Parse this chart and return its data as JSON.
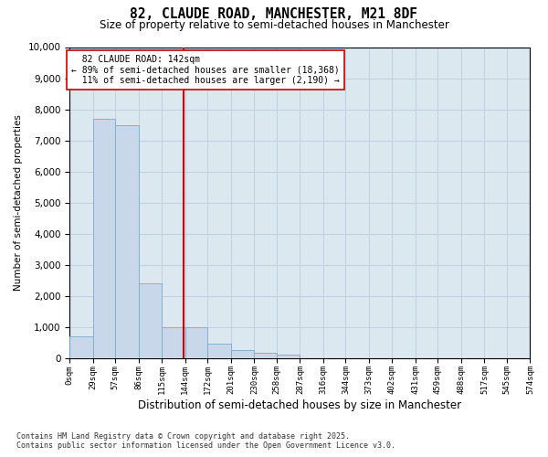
{
  "title_line1": "82, CLAUDE ROAD, MANCHESTER, M21 8DF",
  "title_line2": "Size of property relative to semi-detached houses in Manchester",
  "xlabel": "Distribution of semi-detached houses by size in Manchester",
  "ylabel": "Number of semi-detached properties",
  "footnote": "Contains HM Land Registry data © Crown copyright and database right 2025.\nContains public sector information licensed under the Open Government Licence v3.0.",
  "property_size": 142,
  "property_label": "82 CLAUDE ROAD: 142sqm",
  "pct_smaller": 89,
  "count_smaller": 18368,
  "pct_larger": 11,
  "count_larger": 2190,
  "bar_color": "#c8d8ea",
  "bar_edge_color": "#7aaac8",
  "vline_color": "#cc0000",
  "grid_color": "#c0d0e0",
  "background_color": "#dce8f0",
  "bin_edges": [
    0,
    29,
    57,
    86,
    115,
    144,
    172,
    201,
    230,
    258,
    287,
    316,
    344,
    373,
    402,
    431,
    459,
    488,
    517,
    545,
    574
  ],
  "bin_labels": [
    "0sqm",
    "29sqm",
    "57sqm",
    "86sqm",
    "115sqm",
    "144sqm",
    "172sqm",
    "201sqm",
    "230sqm",
    "258sqm",
    "287sqm",
    "316sqm",
    "344sqm",
    "373sqm",
    "402sqm",
    "431sqm",
    "459sqm",
    "488sqm",
    "517sqm",
    "545sqm",
    "574sqm"
  ],
  "bar_heights": [
    700,
    7700,
    7500,
    2400,
    1000,
    1000,
    450,
    250,
    150,
    100,
    0,
    0,
    0,
    0,
    0,
    0,
    0,
    0,
    0,
    0
  ],
  "ylim": [
    0,
    10000
  ],
  "yticks": [
    0,
    1000,
    2000,
    3000,
    4000,
    5000,
    6000,
    7000,
    8000,
    9000,
    10000
  ]
}
